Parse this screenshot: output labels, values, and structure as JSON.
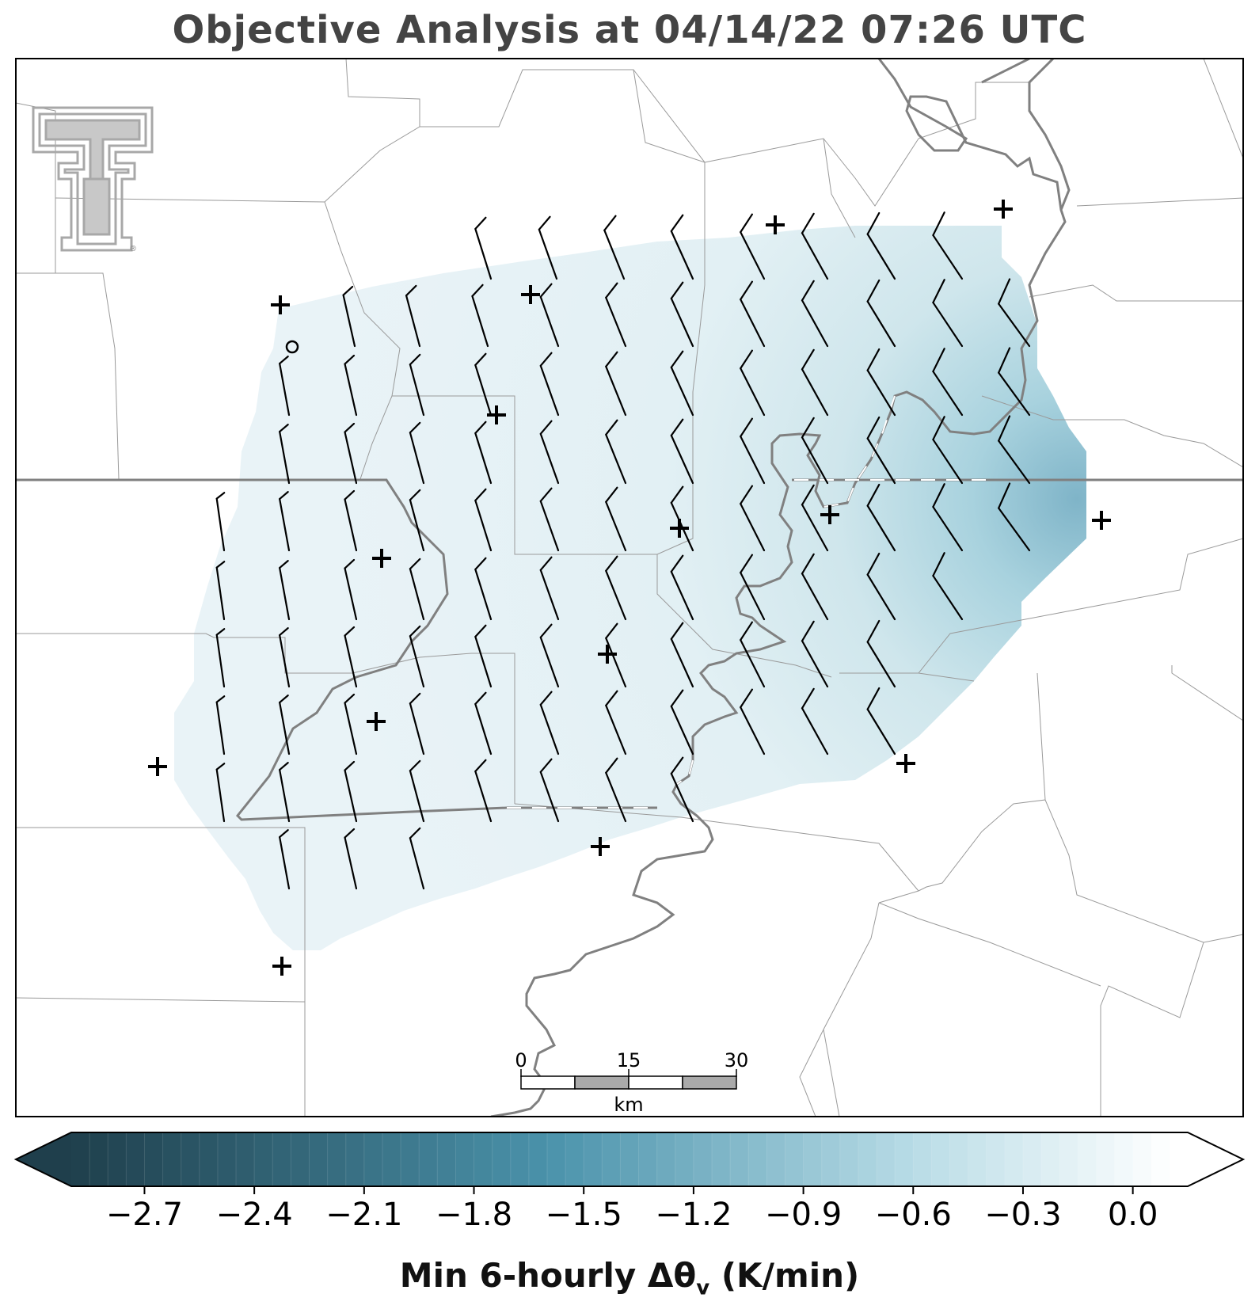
{
  "title": "Objective Analysis at 04/14/22 07:26 UTC",
  "colorbar": {
    "label_main": "Min 6-hourly Δθ",
    "label_sub": "v",
    "label_unit": " (K/min)",
    "min": -2.9,
    "max": 0.15,
    "ticks": [
      "−2.7",
      "−2.4",
      "−2.1",
      "−1.8",
      "−1.5",
      "−1.2",
      "−0.9",
      "−0.6",
      "−0.3",
      "0.0"
    ],
    "tick_values": [
      -2.7,
      -2.4,
      -2.1,
      -1.8,
      -1.5,
      -1.2,
      -0.9,
      -0.6,
      -0.3,
      0.0
    ],
    "colors": {
      "dark": "#1f3f4c",
      "mid": "#4a92aa",
      "light": "#b8dce6",
      "white": "#ffffff"
    }
  },
  "scalebar": {
    "labels": [
      "0",
      "15",
      "30"
    ],
    "unit": "km",
    "fill_colors": [
      "#ffffff",
      "#aaaaaa"
    ]
  },
  "analysis_field": {
    "fill_light": "#e6f2f6",
    "fill_dark": "#7fb4c8"
  },
  "station_marker": "plus",
  "logo": {
    "name": "texas-tech-double-t-logo",
    "registered_mark": "®",
    "color": "#a8a8a8"
  }
}
